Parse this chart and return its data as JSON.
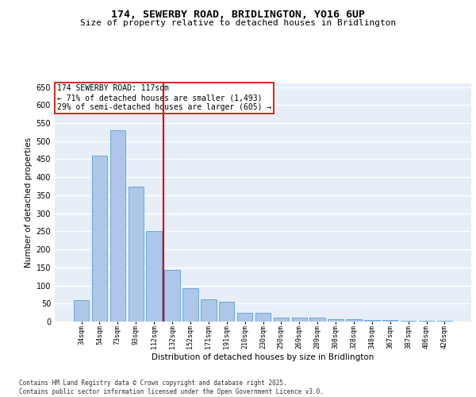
{
  "title1": "174, SEWERBY ROAD, BRIDLINGTON, YO16 6UP",
  "title2": "Size of property relative to detached houses in Bridlington",
  "xlabel": "Distribution of detached houses by size in Bridlington",
  "ylabel": "Number of detached properties",
  "categories": [
    "34sqm",
    "54sqm",
    "73sqm",
    "93sqm",
    "112sqm",
    "132sqm",
    "152sqm",
    "171sqm",
    "191sqm",
    "210sqm",
    "230sqm",
    "250sqm",
    "269sqm",
    "289sqm",
    "308sqm",
    "328sqm",
    "348sqm",
    "367sqm",
    "387sqm",
    "406sqm",
    "426sqm"
  ],
  "values": [
    60,
    460,
    530,
    375,
    250,
    142,
    93,
    62,
    55,
    25,
    25,
    10,
    11,
    10,
    6,
    6,
    5,
    4,
    3,
    2,
    2
  ],
  "bar_color": "#aec6e8",
  "bar_edge_color": "#5a9fd4",
  "vline_color": "#cc0000",
  "annotation_text": "174 SEWERBY ROAD: 117sqm\n← 71% of detached houses are smaller (1,493)\n29% of semi-detached houses are larger (605) →",
  "annotation_box_color": "#ffffff",
  "annotation_box_edge_color": "#cc0000",
  "ylim": [
    0,
    660
  ],
  "yticks": [
    0,
    50,
    100,
    150,
    200,
    250,
    300,
    350,
    400,
    450,
    500,
    550,
    600,
    650
  ],
  "bg_color": "#e8eef8",
  "grid_color": "#ffffff",
  "footer": "Contains HM Land Registry data © Crown copyright and database right 2025.\nContains public sector information licensed under the Open Government Licence v3.0."
}
